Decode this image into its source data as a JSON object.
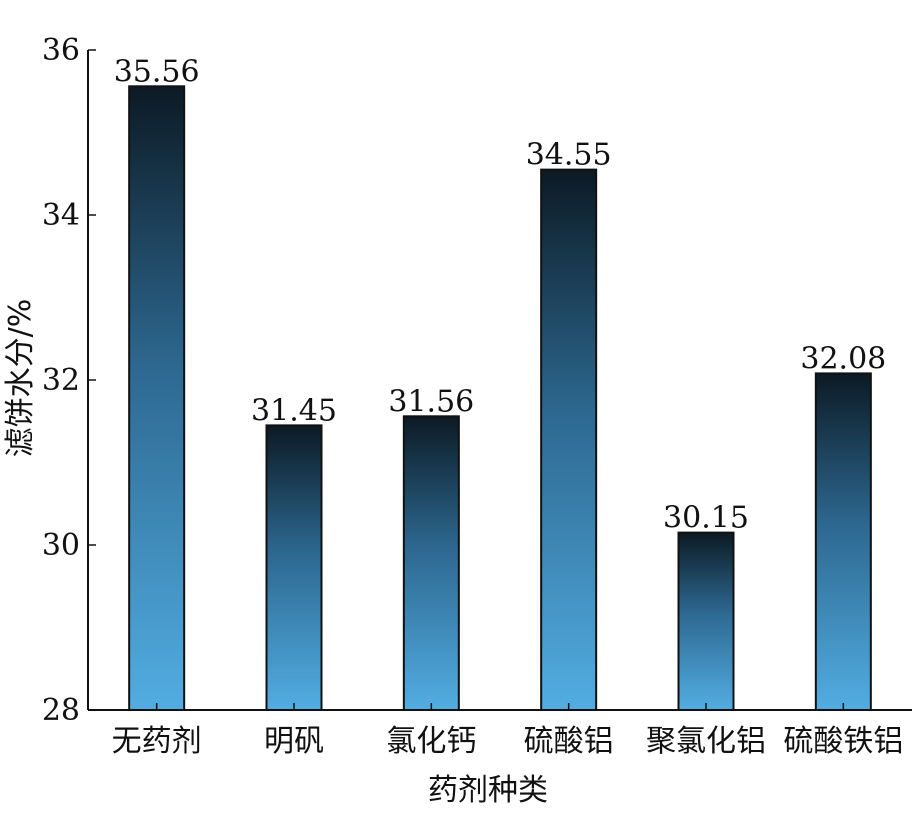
{
  "chart_data": {
    "type": "bar",
    "categories": [
      "无药剂",
      "明矾",
      "氯化钙",
      "硫酸铝",
      "聚氯化铝",
      "硫酸铁铝"
    ],
    "values": [
      35.56,
      31.45,
      31.56,
      34.55,
      30.15,
      32.08
    ],
    "data_labels": [
      "35.56",
      "31.45",
      "31.56",
      "34.55",
      "30.15",
      "32.08"
    ],
    "xlabel": "药剂种类",
    "ylabel": "滤饼水分/%",
    "ylim": [
      28,
      36
    ],
    "yticks": [
      28,
      30,
      32,
      34,
      36
    ],
    "grid": false,
    "legend": "none",
    "colors": {
      "bar_top": "#0c1a24",
      "bar_mid": "#2d6890",
      "bar_bottom": "#52ade2",
      "bar_stroke": "#111111",
      "axis": "#111111"
    }
  }
}
